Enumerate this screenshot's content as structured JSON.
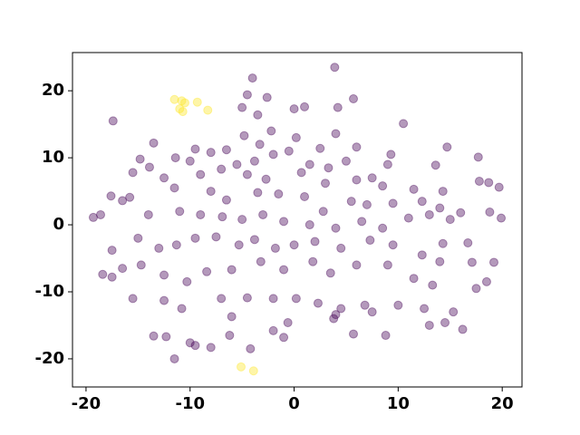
{
  "chart_data": {
    "type": "scatter",
    "xlim": [
      -21.3,
      21.9
    ],
    "ylim": [
      -24.2,
      25.7
    ],
    "xticks": [
      -20,
      -10,
      0,
      10,
      20
    ],
    "yticks": [
      -20,
      -10,
      0,
      10,
      20
    ],
    "grid": false,
    "alpha": 0.4,
    "series": [
      {
        "color": "#fde725",
        "x": [
          -11.5,
          -10.8,
          -10.5,
          -11,
          -10.7,
          -9.3,
          -8.3,
          -5.1,
          -3.9
        ],
        "y": [
          18.7,
          18.5,
          18.2,
          17.3,
          16.9,
          18.3,
          17.1,
          -21.2,
          -21.8
        ]
      },
      {
        "color": "#440154",
        "x": [
          -4,
          3.9,
          -17.4,
          -2.6,
          -4.5,
          5.7,
          4.2,
          1,
          0,
          -5,
          10.5,
          -3.5,
          4,
          -13.5,
          -9.5,
          -4.8,
          -3.3,
          -2.2,
          0.2,
          2.5,
          6,
          9.3,
          14.7,
          17.7,
          13.6,
          -14.8,
          -13.9,
          -11.4,
          -10,
          -8,
          -6.5,
          -5.5,
          -3.8,
          -2,
          -0.5,
          1.5,
          3.3,
          5,
          7.5,
          9,
          -15.5,
          -12.5,
          -9,
          -7,
          -4.5,
          -2.7,
          0.7,
          3,
          6,
          8.5,
          11.5,
          14.3,
          17.8,
          18.7,
          19.7,
          -17.6,
          -15.8,
          -11.5,
          -8,
          -6.5,
          -3.5,
          -1.5,
          1,
          2.8,
          5.5,
          7,
          9.5,
          12.3,
          14,
          16,
          18.8,
          19.9,
          -19.3,
          -18.6,
          -16.5,
          -14,
          -11,
          -9,
          -6.9,
          -5,
          -3,
          -1,
          1.5,
          4,
          6.5,
          8.5,
          11,
          13,
          15,
          -18.4,
          -17.5,
          -15,
          -13,
          -11.3,
          -9.5,
          -7.5,
          -5.3,
          -3.8,
          -1.8,
          0,
          2,
          4.5,
          7.3,
          9.5,
          12.3,
          14.3,
          16.7,
          -17.5,
          -14.7,
          -12.5,
          -10.3,
          -8.4,
          -6,
          -3.2,
          -1,
          1.8,
          3.5,
          6,
          9,
          11.5,
          14,
          17.1,
          19.2,
          -15.5,
          -12.5,
          -10.8,
          -7,
          -4.5,
          -2,
          0.2,
          2.3,
          4.5,
          7.5,
          10,
          13,
          14.5,
          15.3,
          17.5,
          18.5,
          -13.5,
          -12.3,
          -9.5,
          -8,
          -6,
          -4.2,
          -2,
          -0.6,
          -1,
          3.8,
          5.7,
          8.8,
          -11.5,
          -10,
          4,
          -16.5,
          -6.2,
          6.8,
          13.3,
          16.2,
          12.5
        ],
        "y": [
          21.9,
          23.5,
          15.5,
          19,
          19.4,
          18.8,
          17.5,
          17.6,
          17.3,
          17.5,
          15.1,
          16.4,
          13.6,
          12.2,
          11.3,
          13.3,
          12,
          14,
          13,
          11.4,
          11.6,
          10.5,
          11.6,
          10.1,
          8.9,
          9.8,
          8.6,
          10,
          9.5,
          10.8,
          11.2,
          9,
          9.5,
          10.5,
          11,
          9,
          8.5,
          9.5,
          7,
          9,
          7.8,
          7,
          7.5,
          8.3,
          7.5,
          6.8,
          7.8,
          6.2,
          6.7,
          5.8,
          5.3,
          5,
          6.5,
          6.3,
          5.6,
          4.3,
          4.1,
          5.5,
          5,
          3.7,
          4.8,
          4.6,
          4.2,
          2,
          3.5,
          3,
          3.2,
          3.5,
          2.5,
          1.8,
          1.9,
          1,
          1.1,
          1.5,
          3.6,
          1.5,
          2,
          1.5,
          1.2,
          0.8,
          1.5,
          0.5,
          0,
          -0.5,
          0.5,
          -0.5,
          1,
          1.5,
          0.8,
          -7.4,
          -3.8,
          -2,
          -3.5,
          -3,
          -2,
          -1.8,
          -3,
          -2.2,
          -3.5,
          -3,
          -2.5,
          -3.5,
          -2.3,
          -3,
          -4.5,
          -2.8,
          -2.7,
          -7.8,
          -6,
          -7.5,
          -8.5,
          -7,
          -6.7,
          -5.5,
          -6.7,
          -5.5,
          -7.2,
          -6,
          -6,
          -8,
          -5.5,
          -5.6,
          -5.6,
          -11,
          -11.3,
          -12.5,
          -11,
          -10.9,
          -11,
          -11,
          -11.7,
          -12.5,
          -13,
          -12,
          -15,
          -14.6,
          -13,
          -9.5,
          -8.5,
          -16.6,
          -16.7,
          -18,
          -18.3,
          -13.7,
          -18.5,
          -15.8,
          -14.6,
          -16.8,
          -14,
          -16.3,
          -16.5,
          -20,
          -17.6,
          -13.4,
          -6.5,
          -16.5,
          -12,
          -9,
          -15.6,
          -12.5
        ]
      }
    ]
  }
}
